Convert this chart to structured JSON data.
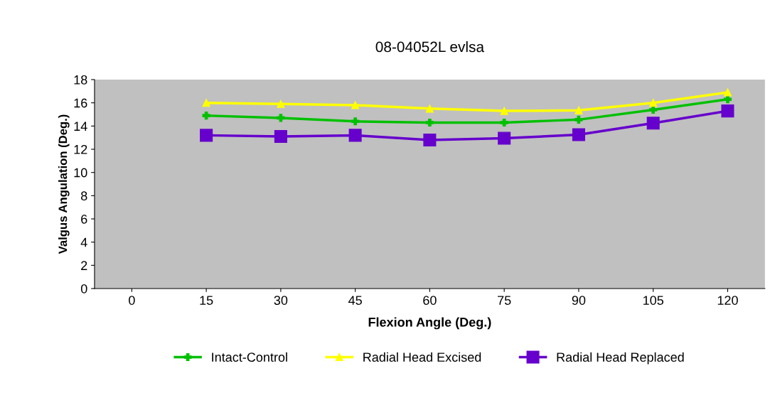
{
  "chart_data": {
    "type": "line",
    "title": "08-04052L evlsa",
    "xlabel": "Flexion Angle (Deg.)",
    "ylabel": "Valgus Angulation (Deg.)",
    "categories": [
      "0",
      "15",
      "30",
      "45",
      "60",
      "75",
      "90",
      "105",
      "120"
    ],
    "ylim": [
      0,
      18
    ],
    "yticks": [
      0,
      2,
      4,
      6,
      8,
      10,
      12,
      14,
      16,
      18
    ],
    "grid": false,
    "legend": "bottom",
    "series": [
      {
        "name": "Intact-Control",
        "color": "#00c000",
        "marker": "cross",
        "values": [
          null,
          14.9,
          14.7,
          14.4,
          14.3,
          14.3,
          14.55,
          15.4,
          16.3
        ]
      },
      {
        "name": "Radial Head Excised",
        "color": "#ffff00",
        "marker": "triangle",
        "values": [
          null,
          16.0,
          15.9,
          15.8,
          15.5,
          15.3,
          15.35,
          16.0,
          16.9
        ]
      },
      {
        "name": "Radial Head Replaced",
        "color": "#6600cc",
        "marker": "square",
        "values": [
          null,
          13.2,
          13.1,
          13.2,
          12.8,
          12.95,
          13.25,
          14.25,
          15.3
        ]
      }
    ]
  }
}
